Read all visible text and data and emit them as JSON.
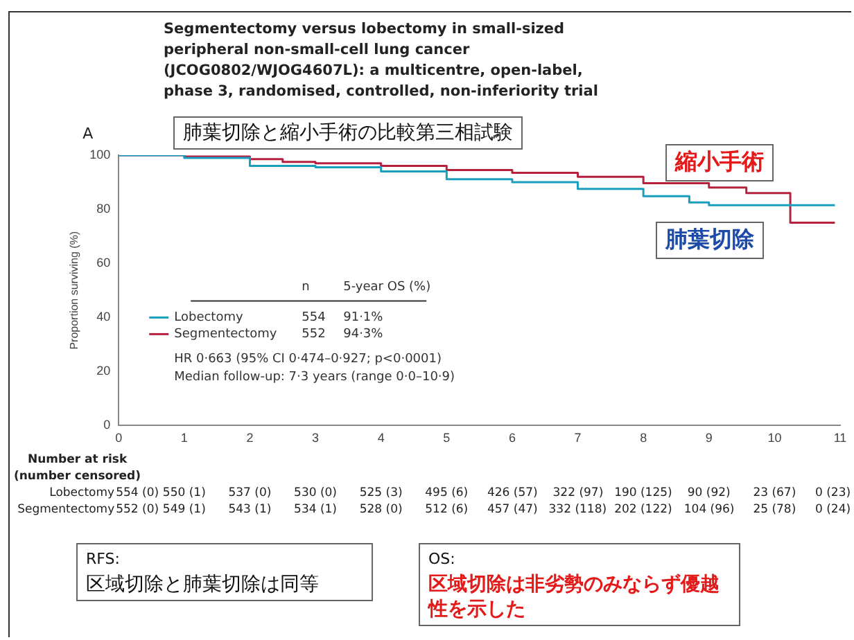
{
  "chart_data": {
    "type": "step",
    "title": "Segmentectomy versus lobectomy in small-sized peripheral non-small-cell lung cancer (JCOG0802/WJOG4607L): a multicentre, open-label, phase 3, randomised, controlled, non-inferiority trial",
    "ylabel": "Proportion surviving (%)",
    "xlim": [
      0,
      11
    ],
    "xticks": [
      0,
      1,
      2,
      3,
      4,
      5,
      6,
      7,
      8,
      9,
      10,
      11
    ],
    "ylim": [
      0,
      100
    ],
    "yticks": [
      0,
      20,
      40,
      60,
      80,
      100
    ],
    "grid": false,
    "legend": "bottom left",
    "marker": "none",
    "line_style": "solid",
    "series": [
      {
        "name": "Lobectomy",
        "color": "#1a9ec0",
        "x": [
          0,
          1,
          2,
          3,
          4,
          5,
          6,
          7,
          8,
          8.7,
          9,
          10.92
        ],
        "values": [
          100,
          99,
          96,
          95.5,
          94,
          91.1,
          90,
          87.5,
          84.8,
          82.5,
          81.5,
          81.5
        ]
      },
      {
        "name": "Segmentectomy",
        "color": "#b5203f",
        "x": [
          0,
          1,
          2,
          2.5,
          3,
          4,
          5,
          6,
          7,
          8,
          9,
          9.57,
          10.24,
          10.92
        ],
        "values": [
          100,
          99.5,
          98.5,
          97.5,
          97,
          96,
          94.5,
          93.5,
          92,
          89.6,
          88,
          86,
          75,
          75
        ]
      }
    ],
    "annotations": [
      "A",
      "肺葉切除と縮小手術の比較第三相試験",
      "縮小手術",
      "肺葉切除",
      "n",
      "5-year OS (%)",
      "554",
      "91·1%",
      "552",
      "94·3%",
      "HR 0·663 (95% CI 0·474–0·927; p<0·0001)",
      "Median follow-up: 7·3 years (range 0·0–10·9)",
      "Number at risk",
      "(number censored)",
      "Lobectomy",
      "554 (0)",
      "550 (1)",
      "537 (0)",
      "530 (0)",
      "525 (3)",
      "495 (6)",
      "426 (57)",
      "322 (97)",
      "190 (125)",
      "90 (92)",
      "23 (67)",
      "0 (23)",
      "Segmentectomy",
      "552 (0)",
      "549 (1)",
      "543 (1)",
      "534 (1)",
      "528 (0)",
      "512 (6)",
      "457 (47)",
      "332 (118)",
      "202 (122)",
      "104 (96)",
      "25 (78)",
      "0 (24)",
      "RFS:",
      "区域切除と肺葉切除は同等",
      "OS:",
      "区域切除は非劣勢のみならず優越性を示した"
    ]
  }
}
